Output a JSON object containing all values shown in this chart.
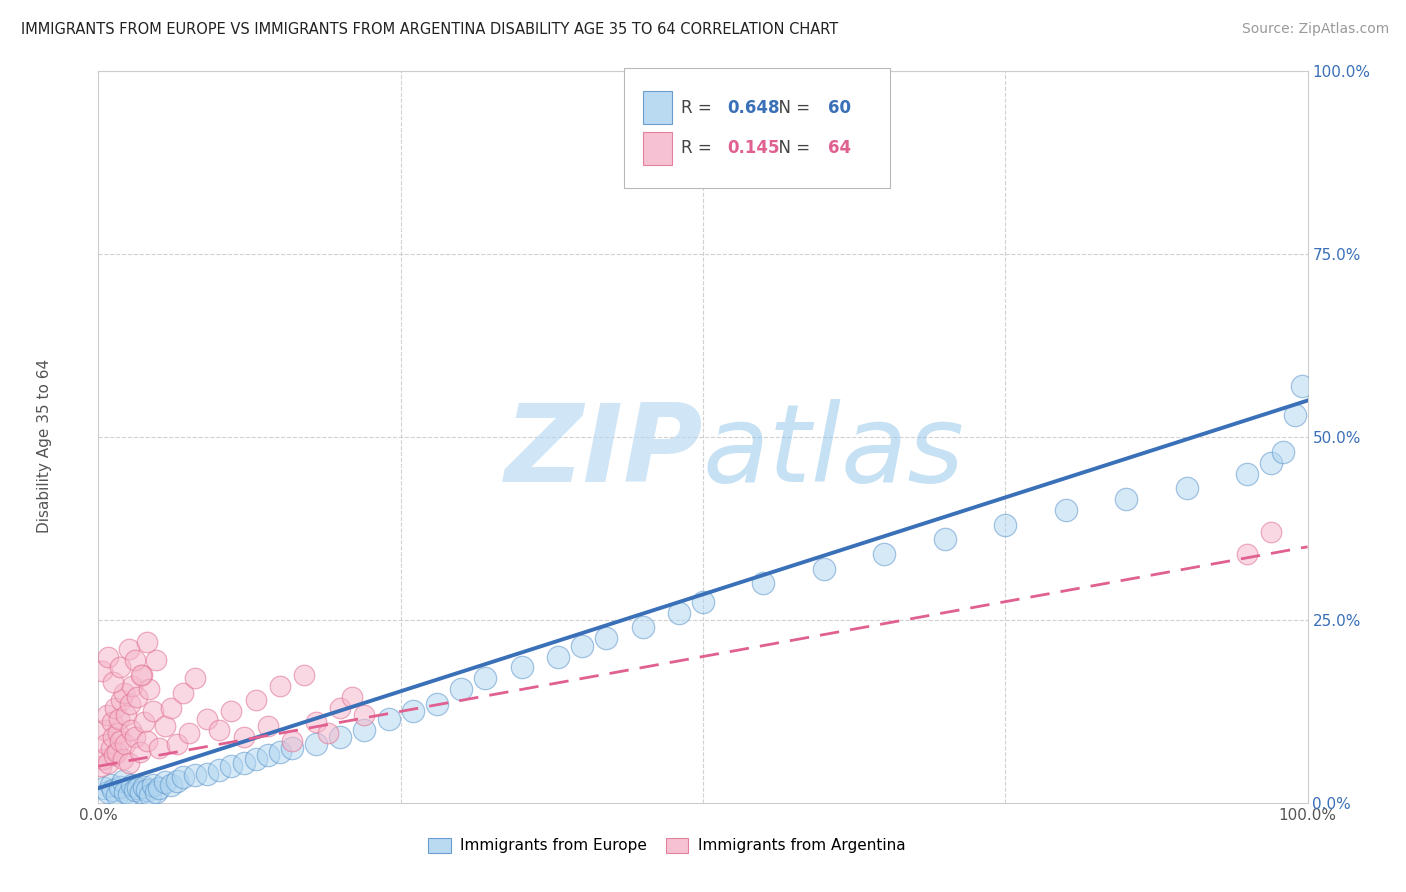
{
  "title": "IMMIGRANTS FROM EUROPE VS IMMIGRANTS FROM ARGENTINA DISABILITY AGE 35 TO 64 CORRELATION CHART",
  "source": "Source: ZipAtlas.com",
  "ylabel": "Disability Age 35 to 64",
  "xlim": [
    0,
    1.0
  ],
  "ylim": [
    0,
    1.0
  ],
  "blue_R": 0.648,
  "blue_N": 60,
  "pink_R": 0.145,
  "pink_N": 64,
  "blue_fill": "#aed4f0",
  "pink_fill": "#f5b8cc",
  "blue_edge": "#5590c8",
  "pink_edge": "#e07090",
  "blue_line": "#3a70b8",
  "pink_line": "#e06090",
  "watermark_zip": "ZIP",
  "watermark_atlas": "atlas",
  "background_color": "#ffffff",
  "blue_scatter_x": [
    0.005,
    0.008,
    0.01,
    0.012,
    0.015,
    0.018,
    0.02,
    0.022,
    0.025,
    0.028,
    0.03,
    0.033,
    0.035,
    0.038,
    0.04,
    0.043,
    0.045,
    0.048,
    0.05,
    0.055,
    0.06,
    0.065,
    0.07,
    0.08,
    0.09,
    0.1,
    0.11,
    0.12,
    0.13,
    0.14,
    0.15,
    0.16,
    0.18,
    0.2,
    0.22,
    0.24,
    0.26,
    0.28,
    0.3,
    0.32,
    0.35,
    0.38,
    0.4,
    0.42,
    0.45,
    0.48,
    0.5,
    0.55,
    0.6,
    0.65,
    0.7,
    0.75,
    0.8,
    0.85,
    0.9,
    0.95,
    0.97,
    0.98,
    0.99,
    0.995
  ],
  "blue_scatter_y": [
    0.02,
    0.015,
    0.025,
    0.018,
    0.01,
    0.022,
    0.03,
    0.015,
    0.012,
    0.025,
    0.018,
    0.02,
    0.015,
    0.022,
    0.018,
    0.01,
    0.025,
    0.015,
    0.02,
    0.028,
    0.025,
    0.03,
    0.035,
    0.038,
    0.04,
    0.045,
    0.05,
    0.055,
    0.06,
    0.065,
    0.07,
    0.075,
    0.08,
    0.09,
    0.1,
    0.115,
    0.125,
    0.135,
    0.155,
    0.17,
    0.185,
    0.2,
    0.215,
    0.225,
    0.24,
    0.26,
    0.275,
    0.3,
    0.32,
    0.34,
    0.36,
    0.38,
    0.4,
    0.415,
    0.43,
    0.45,
    0.465,
    0.48,
    0.53,
    0.57
  ],
  "pink_scatter_x": [
    0.002,
    0.004,
    0.005,
    0.006,
    0.007,
    0.008,
    0.01,
    0.011,
    0.012,
    0.013,
    0.014,
    0.015,
    0.016,
    0.017,
    0.018,
    0.019,
    0.02,
    0.021,
    0.022,
    0.023,
    0.025,
    0.026,
    0.027,
    0.028,
    0.03,
    0.032,
    0.034,
    0.036,
    0.038,
    0.04,
    0.042,
    0.045,
    0.048,
    0.05,
    0.055,
    0.06,
    0.065,
    0.07,
    0.075,
    0.08,
    0.09,
    0.1,
    0.11,
    0.12,
    0.13,
    0.14,
    0.15,
    0.16,
    0.17,
    0.18,
    0.19,
    0.2,
    0.21,
    0.22,
    0.003,
    0.008,
    0.012,
    0.018,
    0.025,
    0.03,
    0.035,
    0.04,
    0.95,
    0.97
  ],
  "pink_scatter_y": [
    0.05,
    0.06,
    0.1,
    0.08,
    0.12,
    0.055,
    0.075,
    0.11,
    0.09,
    0.065,
    0.13,
    0.07,
    0.095,
    0.115,
    0.085,
    0.14,
    0.06,
    0.15,
    0.08,
    0.12,
    0.055,
    0.135,
    0.1,
    0.16,
    0.09,
    0.145,
    0.07,
    0.175,
    0.11,
    0.085,
    0.155,
    0.125,
    0.195,
    0.075,
    0.105,
    0.13,
    0.08,
    0.15,
    0.095,
    0.17,
    0.115,
    0.1,
    0.125,
    0.09,
    0.14,
    0.105,
    0.16,
    0.085,
    0.175,
    0.11,
    0.095,
    0.13,
    0.145,
    0.12,
    0.18,
    0.2,
    0.165,
    0.185,
    0.21,
    0.195,
    0.175,
    0.22,
    0.34,
    0.37
  ]
}
